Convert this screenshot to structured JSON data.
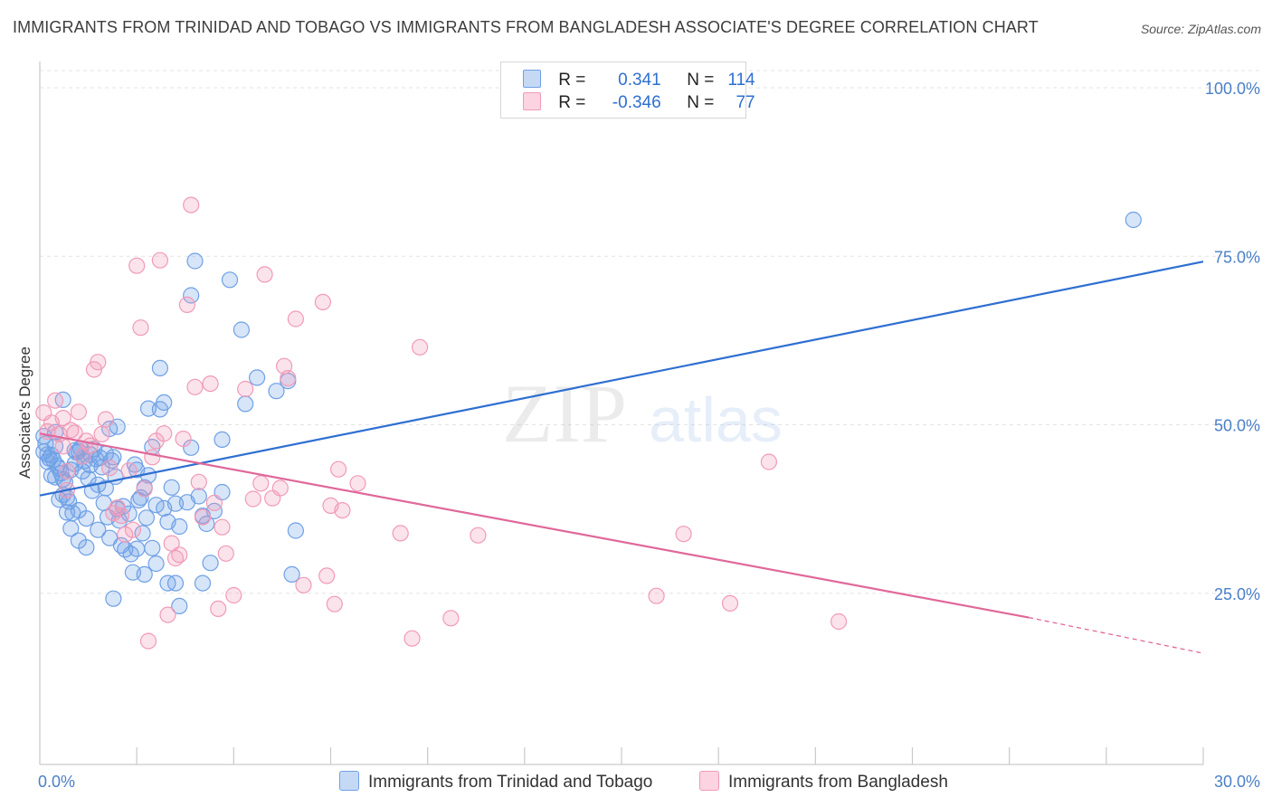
{
  "title": "IMMIGRANTS FROM TRINIDAD AND TOBAGO VS IMMIGRANTS FROM BANGLADESH ASSOCIATE'S DEGREE CORRELATION CHART",
  "source": "Source: ZipAtlas.com",
  "watermark": {
    "zip": "ZIP",
    "atlas": "atlas"
  },
  "legend": {
    "rows": [
      {
        "r_label": "R =",
        "r_value": "0.341",
        "n_label": "N =",
        "n_value": "114",
        "color": "#6ea0e6"
      },
      {
        "r_label": "R =",
        "r_value": "-0.346",
        "n_label": "N =",
        "n_value": "77",
        "color": "#f19ab8"
      }
    ]
  },
  "bottom_legend": [
    "Immigrants from Trinidad and Tobago",
    "Immigrants from Bangladesh"
  ],
  "chart_data": {
    "type": "scatter",
    "xlabel": "",
    "ylabel": "Associate's Degree",
    "xlim": [
      0,
      30
    ],
    "ylim": [
      0,
      105
    ],
    "x_tick_labels": [
      {
        "value": 0,
        "label": "0.0%"
      },
      {
        "value": 30,
        "label": "30.0%"
      }
    ],
    "y_tick_labels": [
      {
        "value": 25,
        "label": "25.0%"
      },
      {
        "value": 50,
        "label": "50.0%"
      },
      {
        "value": 75,
        "label": "75.0%"
      },
      {
        "value": 100,
        "label": "100.0%"
      }
    ],
    "grid": true,
    "series": [
      {
        "name": "Immigrants from Trinidad and Tobago",
        "color": "#6ea0e6",
        "line_color": "#2e6fd1",
        "trend": {
          "x": [
            0,
            30
          ],
          "y": [
            39.5,
            74.2
          ]
        },
        "points": [
          [
            0.1,
            48.3
          ],
          [
            0.1,
            46.0
          ],
          [
            0.2,
            45.6
          ],
          [
            0.2,
            44.5
          ],
          [
            0.3,
            45.5
          ],
          [
            0.3,
            42.5
          ],
          [
            0.4,
            42.2
          ],
          [
            0.4,
            46.8
          ],
          [
            0.4,
            48.9
          ],
          [
            0.5,
            43.5
          ],
          [
            0.5,
            38.9
          ],
          [
            0.6,
            39.6
          ],
          [
            0.6,
            41.9
          ],
          [
            0.6,
            53.7
          ],
          [
            0.7,
            39.2
          ],
          [
            0.7,
            37.0
          ],
          [
            0.8,
            43.3
          ],
          [
            0.8,
            34.6
          ],
          [
            0.9,
            46.2
          ],
          [
            0.9,
            44.2
          ],
          [
            1.0,
            46.1
          ],
          [
            1.0,
            37.3
          ],
          [
            1.0,
            32.8
          ],
          [
            1.1,
            45.3
          ],
          [
            1.1,
            43.1
          ],
          [
            1.2,
            36.1
          ],
          [
            1.2,
            31.8
          ],
          [
            1.3,
            45.6
          ],
          [
            1.3,
            44.0
          ],
          [
            1.4,
            46.4
          ],
          [
            1.5,
            41.1
          ],
          [
            1.5,
            34.4
          ],
          [
            1.6,
            43.7
          ],
          [
            1.7,
            45.7
          ],
          [
            1.7,
            40.6
          ],
          [
            1.8,
            49.4
          ],
          [
            1.8,
            33.2
          ],
          [
            1.9,
            45.2
          ],
          [
            1.9,
            24.2
          ],
          [
            2.0,
            49.7
          ],
          [
            2.0,
            37.5
          ],
          [
            2.1,
            32.1
          ],
          [
            2.2,
            31.5
          ],
          [
            2.3,
            36.8
          ],
          [
            2.4,
            28.1
          ],
          [
            2.5,
            31.6
          ],
          [
            2.5,
            43.3
          ],
          [
            2.6,
            39.2
          ],
          [
            2.7,
            40.7
          ],
          [
            2.7,
            27.8
          ],
          [
            2.8,
            42.5
          ],
          [
            2.8,
            52.4
          ],
          [
            2.9,
            46.7
          ],
          [
            2.9,
            31.7
          ],
          [
            3.0,
            38.1
          ],
          [
            3.0,
            29.4
          ],
          [
            3.1,
            52.3
          ],
          [
            3.1,
            58.4
          ],
          [
            3.2,
            37.6
          ],
          [
            3.2,
            53.3
          ],
          [
            3.3,
            26.5
          ],
          [
            3.3,
            35.6
          ],
          [
            3.4,
            40.7
          ],
          [
            3.5,
            26.5
          ],
          [
            3.5,
            38.3
          ],
          [
            3.6,
            23.1
          ],
          [
            3.6,
            34.9
          ],
          [
            3.8,
            38.5
          ],
          [
            3.9,
            69.2
          ],
          [
            3.9,
            46.6
          ],
          [
            4.0,
            74.3
          ],
          [
            4.1,
            39.4
          ],
          [
            4.2,
            36.5
          ],
          [
            4.2,
            26.5
          ],
          [
            4.3,
            35.3
          ],
          [
            4.4,
            29.5
          ],
          [
            4.5,
            37.2
          ],
          [
            4.7,
            47.8
          ],
          [
            4.7,
            40.0
          ],
          [
            4.9,
            71.5
          ],
          [
            5.2,
            64.1
          ],
          [
            5.3,
            53.1
          ],
          [
            5.6,
            57.0
          ],
          [
            6.1,
            55.0
          ],
          [
            6.4,
            56.5
          ],
          [
            6.5,
            27.8
          ],
          [
            6.6,
            34.3
          ],
          [
            28.2,
            80.4
          ],
          [
            0.15,
            47.2
          ],
          [
            0.25,
            45.0
          ],
          [
            0.35,
            44.8
          ],
          [
            0.45,
            43.9
          ],
          [
            0.55,
            42.8
          ],
          [
            0.65,
            41.5
          ],
          [
            0.75,
            38.6
          ],
          [
            0.85,
            36.9
          ],
          [
            0.95,
            45.9
          ],
          [
            1.05,
            46.5
          ],
          [
            1.15,
            44.6
          ],
          [
            1.25,
            42.0
          ],
          [
            1.35,
            40.2
          ],
          [
            1.45,
            44.9
          ],
          [
            1.55,
            45.1
          ],
          [
            1.65,
            38.4
          ],
          [
            1.75,
            36.3
          ],
          [
            1.85,
            44.7
          ],
          [
            1.95,
            42.3
          ],
          [
            2.05,
            35.8
          ],
          [
            2.15,
            37.9
          ],
          [
            2.35,
            30.8
          ],
          [
            2.45,
            44.1
          ],
          [
            2.55,
            38.8
          ],
          [
            2.65,
            33.9
          ],
          [
            2.75,
            36.2
          ]
        ]
      },
      {
        "name": "Immigrants from Bangladesh",
        "color": "#f19ab8",
        "line_color": "#e0689a",
        "trend": {
          "x": [
            0,
            25.5
          ],
          "y": [
            48.7,
            21.4
          ]
        },
        "trend_dashed": {
          "x": [
            25.5,
            30
          ],
          "y": [
            21.4,
            16.1
          ]
        },
        "points": [
          [
            0.1,
            51.8
          ],
          [
            0.2,
            49.0
          ],
          [
            0.3,
            50.3
          ],
          [
            0.4,
            53.6
          ],
          [
            0.5,
            48.6
          ],
          [
            0.6,
            51.0
          ],
          [
            0.6,
            46.8
          ],
          [
            0.7,
            43.1
          ],
          [
            0.7,
            40.3
          ],
          [
            0.8,
            49.2
          ],
          [
            0.9,
            48.8
          ],
          [
            1.0,
            51.9
          ],
          [
            1.1,
            45.3
          ],
          [
            1.2,
            47.6
          ],
          [
            1.3,
            46.9
          ],
          [
            1.4,
            58.2
          ],
          [
            1.5,
            59.3
          ],
          [
            1.6,
            48.6
          ],
          [
            1.7,
            50.8
          ],
          [
            1.8,
            43.6
          ],
          [
            1.9,
            36.9
          ],
          [
            2.0,
            37.7
          ],
          [
            2.1,
            36.5
          ],
          [
            2.2,
            33.7
          ],
          [
            2.3,
            43.2
          ],
          [
            2.4,
            34.4
          ],
          [
            2.5,
            73.6
          ],
          [
            2.6,
            64.4
          ],
          [
            2.7,
            40.5
          ],
          [
            2.8,
            17.9
          ],
          [
            2.9,
            45.2
          ],
          [
            3.0,
            47.6
          ],
          [
            3.1,
            74.4
          ],
          [
            3.2,
            48.7
          ],
          [
            3.3,
            21.8
          ],
          [
            3.4,
            32.4
          ],
          [
            3.5,
            30.2
          ],
          [
            3.6,
            30.7
          ],
          [
            3.7,
            47.9
          ],
          [
            3.8,
            67.8
          ],
          [
            3.9,
            82.6
          ],
          [
            4.0,
            55.6
          ],
          [
            4.1,
            41.5
          ],
          [
            4.2,
            36.3
          ],
          [
            4.4,
            56.1
          ],
          [
            4.5,
            38.4
          ],
          [
            4.6,
            22.7
          ],
          [
            4.7,
            34.8
          ],
          [
            4.8,
            30.9
          ],
          [
            5.0,
            24.7
          ],
          [
            5.3,
            55.3
          ],
          [
            5.5,
            39.0
          ],
          [
            5.7,
            41.3
          ],
          [
            5.8,
            72.3
          ],
          [
            6.0,
            39.1
          ],
          [
            6.2,
            40.6
          ],
          [
            6.3,
            58.7
          ],
          [
            6.4,
            56.9
          ],
          [
            6.6,
            65.7
          ],
          [
            6.8,
            26.2
          ],
          [
            7.3,
            68.2
          ],
          [
            7.4,
            27.6
          ],
          [
            7.5,
            38.0
          ],
          [
            7.6,
            23.4
          ],
          [
            7.7,
            43.4
          ],
          [
            7.8,
            37.3
          ],
          [
            8.2,
            41.3
          ],
          [
            9.3,
            33.9
          ],
          [
            9.6,
            18.3
          ],
          [
            9.8,
            61.5
          ],
          [
            10.6,
            21.3
          ],
          [
            11.3,
            33.6
          ],
          [
            15.9,
            24.6
          ],
          [
            16.6,
            33.8
          ],
          [
            17.8,
            23.5
          ],
          [
            18.8,
            44.5
          ],
          [
            20.6,
            20.8
          ]
        ]
      }
    ]
  }
}
